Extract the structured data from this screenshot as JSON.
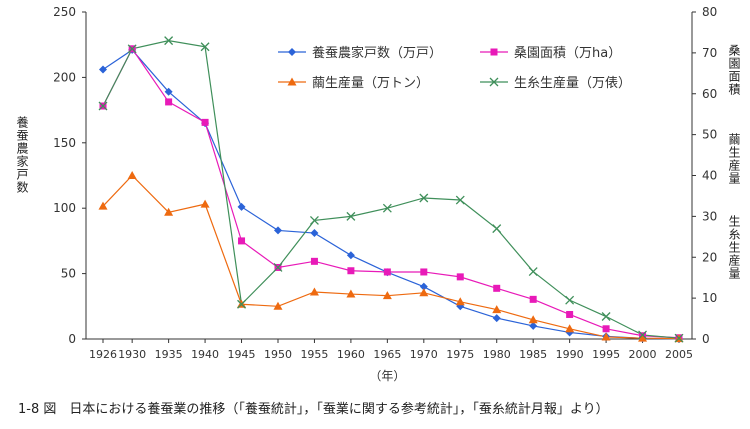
{
  "chart_data": {
    "type": "line",
    "caption": "1-8 図　日本における養蚕業の推移（「養蚕統計」，「蚕業に関する参考統計」，「蚕糸統計月報」より）",
    "x_unit_label": "（年）",
    "left_axis_label": "養蚕農家戸数",
    "right_axis_label_1": "桑園面積",
    "right_axis_label_2": "繭生産量",
    "right_axis_label_3": "生糸生産量",
    "x": [
      "1926",
      "1930",
      "1935",
      "1940",
      "1945",
      "1950",
      "1955",
      "1960",
      "1965",
      "1970",
      "1975",
      "1980",
      "1985",
      "1990",
      "1995",
      "2000",
      "2005"
    ],
    "left_ylim": [
      0,
      250
    ],
    "left_ticks": [
      "0",
      "50",
      "100",
      "150",
      "200",
      "250"
    ],
    "right_ylim": [
      0,
      80
    ],
    "right_ticks": [
      "0",
      "10",
      "20",
      "30",
      "40",
      "50",
      "60",
      "70",
      "80"
    ],
    "grid": false,
    "legend_position": "top-center",
    "series": [
      {
        "name": "養蚕農家戸数（万戸）",
        "axis": "left",
        "color": "#2b63d8",
        "marker": "diamond",
        "values": [
          206,
          221,
          189,
          165,
          101,
          83,
          81,
          64,
          51,
          40,
          25,
          16,
          10,
          5,
          2,
          0.5,
          0.2
        ]
      },
      {
        "name": "桑園面積（万ha）",
        "axis": "right",
        "color": "#e81ab8",
        "marker": "square",
        "values": [
          57,
          71,
          58,
          53,
          24,
          17.5,
          19,
          16.7,
          16.4,
          16.4,
          15.2,
          12.4,
          9.7,
          6,
          2.5,
          0.8,
          0.3
        ]
      },
      {
        "name": "繭生産量（万トン）",
        "axis": "right",
        "color": "#ee6a10",
        "marker": "triangle",
        "values": [
          32.5,
          40,
          31,
          33,
          8.5,
          8,
          11.5,
          11,
          10.6,
          11.3,
          9.1,
          7.2,
          4.7,
          2.5,
          0.5,
          0.2,
          0.1
        ]
      },
      {
        "name": "生糸生産量（万俵）",
        "axis": "right",
        "color": "#3f8f5a",
        "marker": "x",
        "values": [
          57,
          71,
          73,
          71.5,
          8.5,
          17.5,
          29,
          30,
          32,
          34.5,
          34,
          27,
          16.5,
          9.5,
          5.5,
          1,
          0.2
        ]
      }
    ]
  }
}
